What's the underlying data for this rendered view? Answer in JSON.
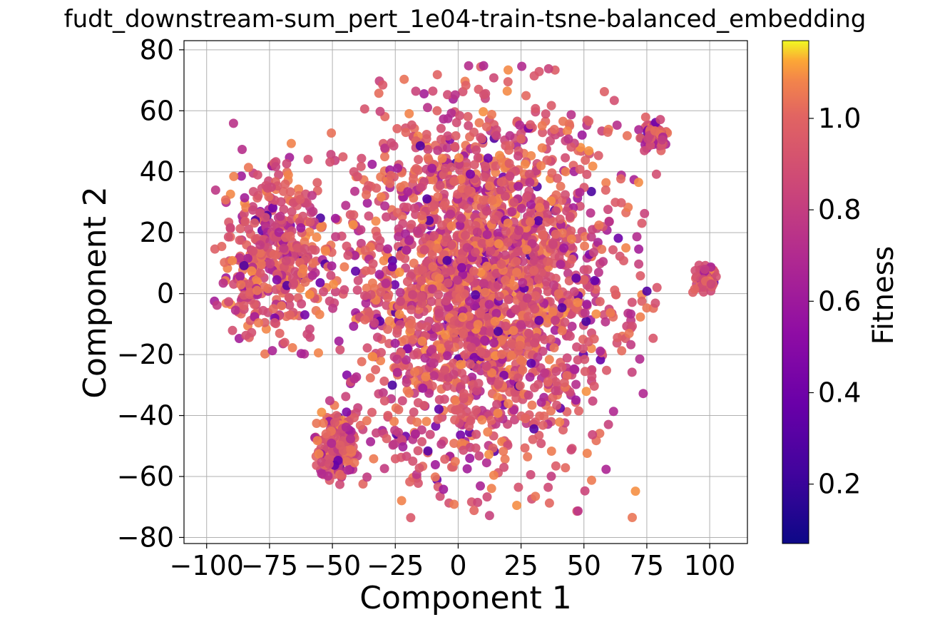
{
  "chart_data": {
    "type": "scatter",
    "title": "fudt_downstream-sum_pert_1e04-train-tsne-balanced_embedding",
    "xlabel": "Component 1",
    "ylabel": "Component 2",
    "xlim": [
      -109,
      115
    ],
    "ylim": [
      -82,
      83
    ],
    "xticks": [
      -100,
      -75,
      -50,
      -25,
      0,
      25,
      50,
      75,
      100
    ],
    "yticks": [
      -80,
      -60,
      -40,
      -20,
      0,
      20,
      40,
      60,
      80
    ],
    "grid": true,
    "colorbar": {
      "label": "Fitness",
      "range": [
        0.07,
        1.17
      ],
      "ticks": [
        0.2,
        0.4,
        0.6,
        0.8,
        1.0
      ],
      "colormap": "plasma"
    },
    "clusters": [
      {
        "center": [
          8,
          3
        ],
        "spread": [
          27,
          30
        ],
        "count": 2300,
        "x_range": [
          -52,
          80
        ],
        "y_range": [
          -74,
          76
        ]
      },
      {
        "center": [
          -73,
          13
        ],
        "spread": [
          11,
          15
        ],
        "count": 420,
        "x_range": [
          -98,
          -48
        ],
        "y_range": [
          -20,
          57
        ]
      },
      {
        "center": [
          98,
          4
        ],
        "spread": [
          2.5,
          2.5
        ],
        "count": 60,
        "x_range": [
          93,
          104
        ],
        "y_range": [
          0,
          10
        ]
      },
      {
        "center": [
          78,
          52
        ],
        "spread": [
          3.5,
          3
        ],
        "count": 60,
        "x_range": [
          68,
          85
        ],
        "y_range": [
          44,
          58
        ]
      },
      {
        "center": [
          -48,
          -50
        ],
        "spread": [
          6,
          6
        ],
        "count": 150,
        "x_range": [
          -57,
          -40
        ],
        "y_range": [
          -63,
          -35
        ]
      }
    ]
  }
}
